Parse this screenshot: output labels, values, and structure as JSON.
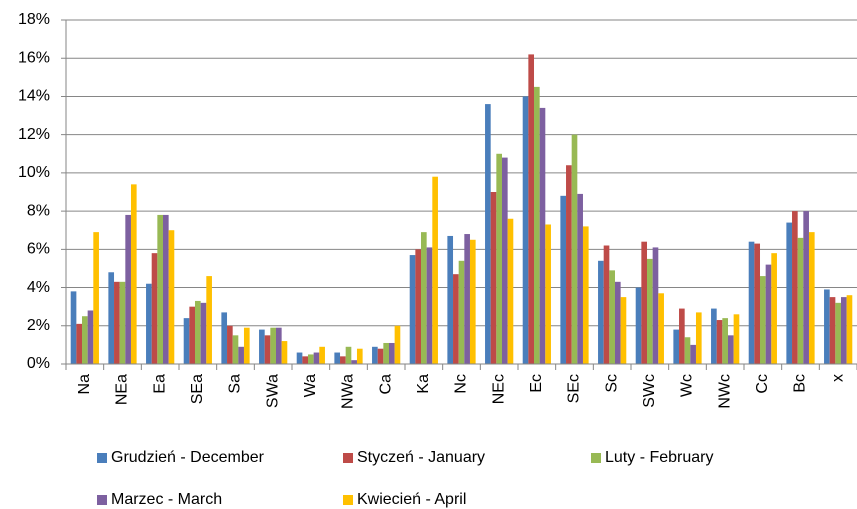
{
  "chart_data": {
    "type": "bar",
    "categories": [
      "Na",
      "NEa",
      "Ea",
      "SEa",
      "Sa",
      "SWa",
      "Wa",
      "NWa",
      "Ca",
      "Ka",
      "Nc",
      "NEc",
      "Ec",
      "SEc",
      "Sc",
      "SWc",
      "Wc",
      "NWc",
      "Cc",
      "Bc",
      "x"
    ],
    "series": [
      {
        "name": "Grudzień - December",
        "color": "#4a7ebb",
        "values": [
          3.8,
          4.8,
          4.2,
          2.4,
          2.7,
          1.8,
          0.6,
          0.6,
          0.9,
          5.7,
          6.7,
          13.6,
          14.0,
          8.8,
          5.4,
          4.0,
          1.8,
          2.9,
          6.4,
          7.4,
          3.9
        ]
      },
      {
        "name": "Styczeń - January",
        "color": "#be4b48",
        "values": [
          2.1,
          4.3,
          5.8,
          3.0,
          2.0,
          1.5,
          0.4,
          0.4,
          0.8,
          6.0,
          4.7,
          9.0,
          16.2,
          10.4,
          6.2,
          6.4,
          2.9,
          2.3,
          6.3,
          8.0,
          3.5
        ]
      },
      {
        "name": "Luty - February",
        "color": "#98b954",
        "values": [
          2.5,
          4.3,
          7.8,
          3.3,
          1.5,
          1.9,
          0.5,
          0.9,
          1.1,
          6.9,
          5.4,
          11.0,
          14.5,
          12.0,
          4.9,
          5.5,
          1.4,
          2.4,
          4.6,
          6.6,
          3.2
        ]
      },
      {
        "name": "Marzec - March",
        "color": "#7d60a0",
        "values": [
          2.8,
          7.8,
          7.8,
          3.2,
          0.9,
          1.9,
          0.6,
          0.2,
          1.1,
          6.1,
          6.8,
          10.8,
          13.4,
          8.9,
          4.3,
          6.1,
          1.0,
          1.5,
          5.2,
          8.0,
          3.5
        ]
      },
      {
        "name": "Kwiecień - April",
        "color": "#ffc000",
        "values": [
          6.9,
          9.4,
          7.0,
          4.6,
          1.9,
          1.2,
          0.9,
          0.8,
          2.0,
          9.8,
          6.5,
          7.6,
          7.3,
          7.2,
          3.5,
          3.7,
          2.7,
          2.6,
          5.8,
          6.9,
          3.6
        ]
      }
    ],
    "ylim": [
      0,
      18
    ],
    "yticks": [
      {
        "value": 0,
        "label": "0%"
      },
      {
        "value": 2,
        "label": "2%"
      },
      {
        "value": 4,
        "label": "4%"
      },
      {
        "value": 6,
        "label": "6%"
      },
      {
        "value": 8,
        "label": "8%"
      },
      {
        "value": 10,
        "label": "10%"
      },
      {
        "value": 12,
        "label": "12%"
      },
      {
        "value": 14,
        "label": "14%"
      },
      {
        "value": 16,
        "label": "16%"
      },
      {
        "value": 18,
        "label": "18%"
      }
    ],
    "grid": true
  }
}
